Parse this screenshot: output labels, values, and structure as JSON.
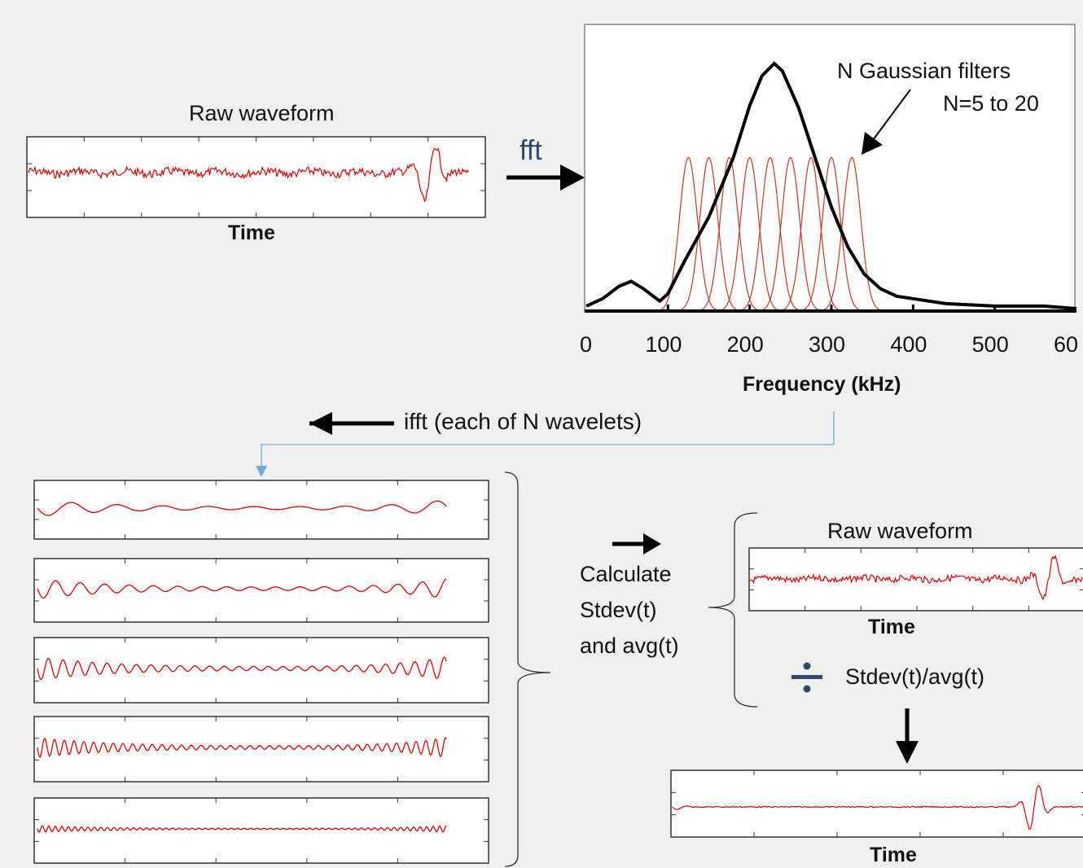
{
  "raw_panel": {
    "title": "Raw waveform",
    "xlabel": "Time"
  },
  "fft_label": "fft",
  "spectrum": {
    "annotation_line1": "N Gaussian filters",
    "annotation_line2": "N=5 to 20",
    "xlabel": "Frequency (kHz)",
    "tick_labels": [
      "0",
      "100",
      "200",
      "300",
      "400",
      "500",
      "60"
    ]
  },
  "ifft_label": "ifft (each of N wavelets)",
  "calc_label": {
    "line1": "Calculate",
    "line2": "Stdev(t)",
    "line3": "and avg(t)"
  },
  "raw_panel_2": {
    "title": "Raw waveform",
    "xlabel": "Time"
  },
  "divide_label": "Stdev(t)/avg(t)",
  "result_panel": {
    "xlabel": "Time"
  },
  "colors": {
    "signal": "#e00000",
    "filter": "#c0392b",
    "spectrum": "#000000",
    "connector": "#6fa8dc",
    "divide_icon": "#2e4a6b",
    "fft_text": "#2e4a6b"
  },
  "chart_data": {
    "type": "line",
    "xlabel": "Frequency (kHz)",
    "xlim": [
      0,
      600
    ],
    "series": [
      {
        "x": [
          0,
          20,
          40,
          55,
          70,
          90,
          100,
          120,
          150,
          180,
          200,
          215,
          230,
          240,
          260,
          280,
          300,
          320,
          340,
          360,
          380,
          400,
          440,
          500,
          560,
          600
        ],
        "values": [
          0.02,
          0.05,
          0.1,
          0.12,
          0.09,
          0.04,
          0.07,
          0.2,
          0.38,
          0.62,
          0.83,
          0.95,
          1.0,
          0.97,
          0.82,
          0.62,
          0.42,
          0.26,
          0.15,
          0.09,
          0.06,
          0.05,
          0.03,
          0.02,
          0.02,
          0.01
        ]
      }
    ],
    "filter_centers": [
      125,
      150,
      175,
      200,
      225,
      250,
      275,
      300,
      325
    ]
  }
}
